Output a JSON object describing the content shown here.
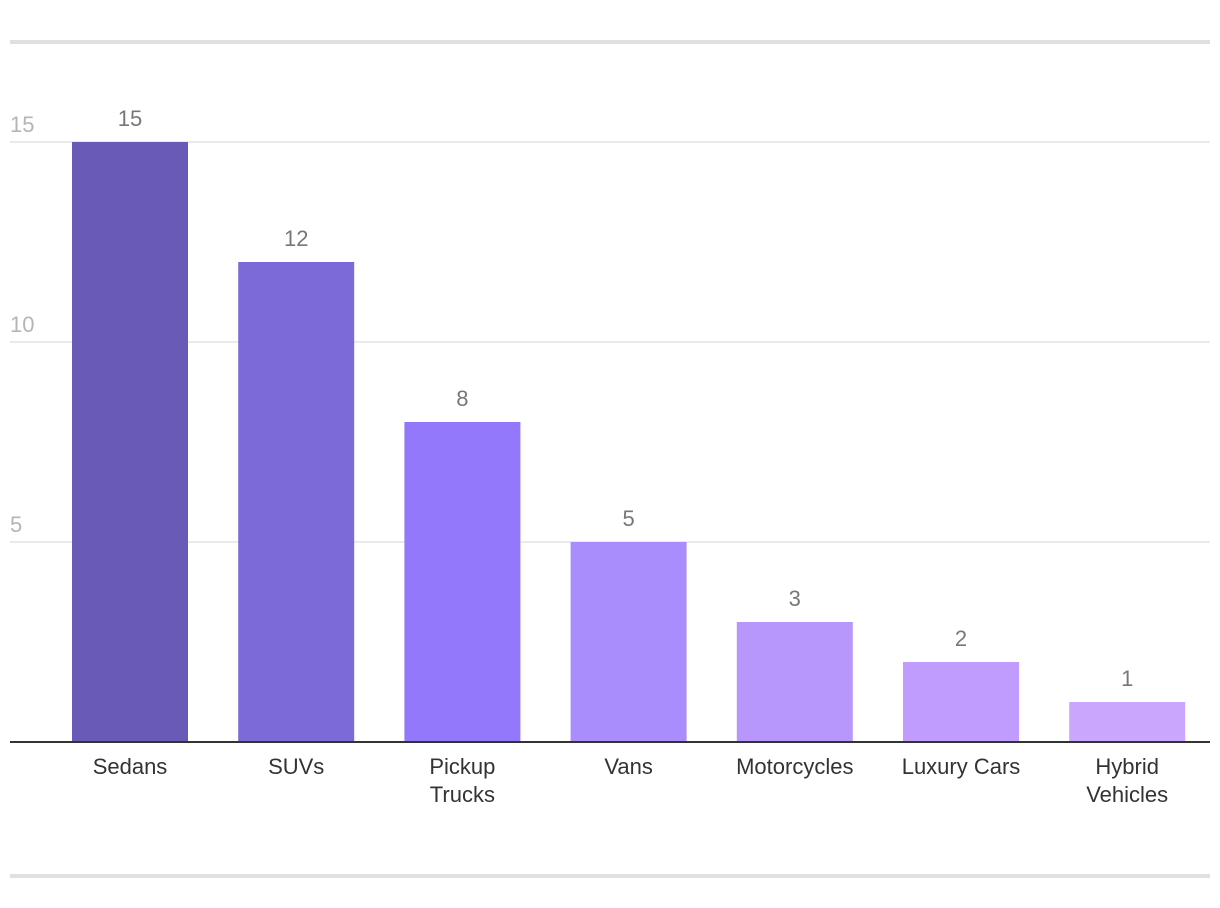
{
  "chart_data": {
    "type": "bar",
    "categories": [
      "Sedans",
      "SUVs",
      "Pickup Trucks",
      "Vans",
      "Motorcycles",
      "Luxury Cars",
      "Hybrid Vehicles"
    ],
    "category_lines": [
      [
        "Sedans"
      ],
      [
        "SUVs"
      ],
      [
        "Pickup",
        "Trucks"
      ],
      [
        "Vans"
      ],
      [
        "Motorcycles"
      ],
      [
        "Luxury Cars"
      ],
      [
        "Hybrid",
        "Vehicles"
      ]
    ],
    "values": [
      15,
      12,
      8,
      5,
      3,
      2,
      1
    ],
    "value_labels": [
      "15",
      "12",
      "8",
      "5",
      "3",
      "2",
      "1"
    ],
    "colors": [
      "#6a5ab8",
      "#7c6ad9",
      "#9478fb",
      "#a98dfc",
      "#b797fc",
      "#bf9cfd",
      "#cba6fd"
    ],
    "ylim": [
      0,
      15
    ],
    "yticks": [
      5,
      10,
      15
    ],
    "ytick_labels": [
      "5",
      "10",
      "15"
    ],
    "grid": true,
    "title": "",
    "xlabel": "",
    "ylabel": ""
  }
}
